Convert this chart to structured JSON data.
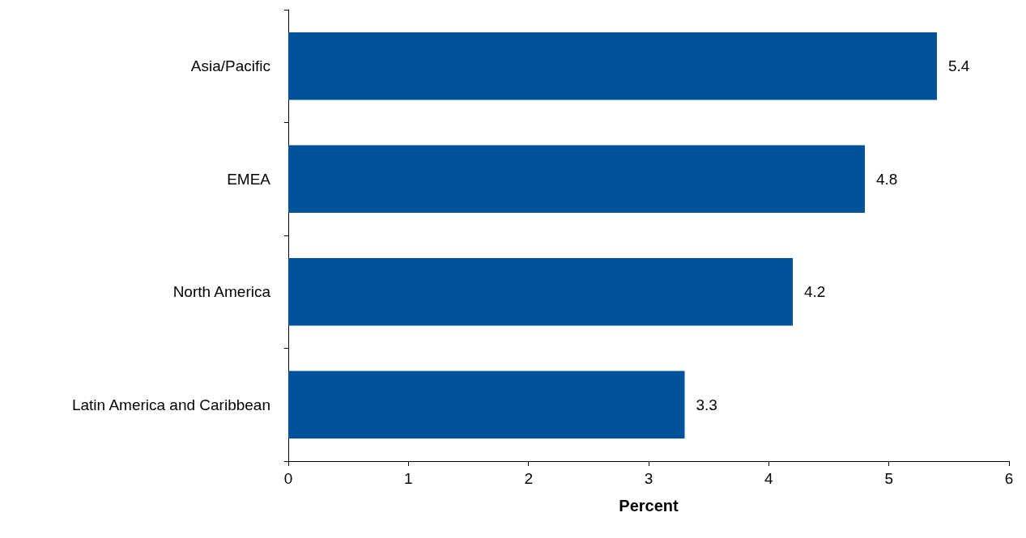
{
  "chart_data": {
    "type": "bar",
    "orientation": "horizontal",
    "xlabel": "Percent",
    "categories": [
      "Asia/Pacific",
      "EMEA",
      "North America",
      "Latin America and Caribbean"
    ],
    "values": [
      5.4,
      4.8,
      4.2,
      3.3
    ],
    "color": "#00529b",
    "xlim": [
      0,
      6
    ],
    "xticks": [
      0,
      1,
      2,
      3,
      4,
      5,
      6
    ],
    "grid": false,
    "data_labels": true
  }
}
